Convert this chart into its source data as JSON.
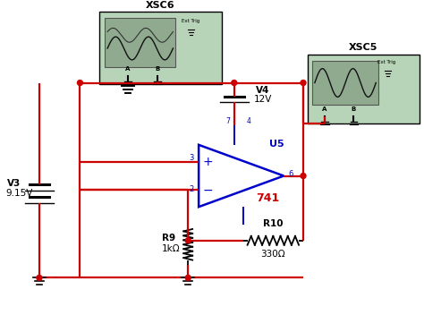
{
  "bg_color": "#ffffff",
  "wire_color": "#cc0000",
  "comp_color": "#0000cc",
  "black": "#000000",
  "green_box": "#b8d4b8",
  "scope_screen": "#8faa8f",
  "components": {
    "V3_label": "V3",
    "V3_val": "9.15V",
    "V4_label": "V4",
    "V4_val": "12V",
    "R9_label": "R9",
    "R9_val": "1kΩ",
    "R10_label": "R10",
    "R10_val": "330Ω",
    "opamp_label": "741",
    "opamp_name": "U5",
    "scope1_label": "XSC6",
    "scope2_label": "XSC5"
  }
}
